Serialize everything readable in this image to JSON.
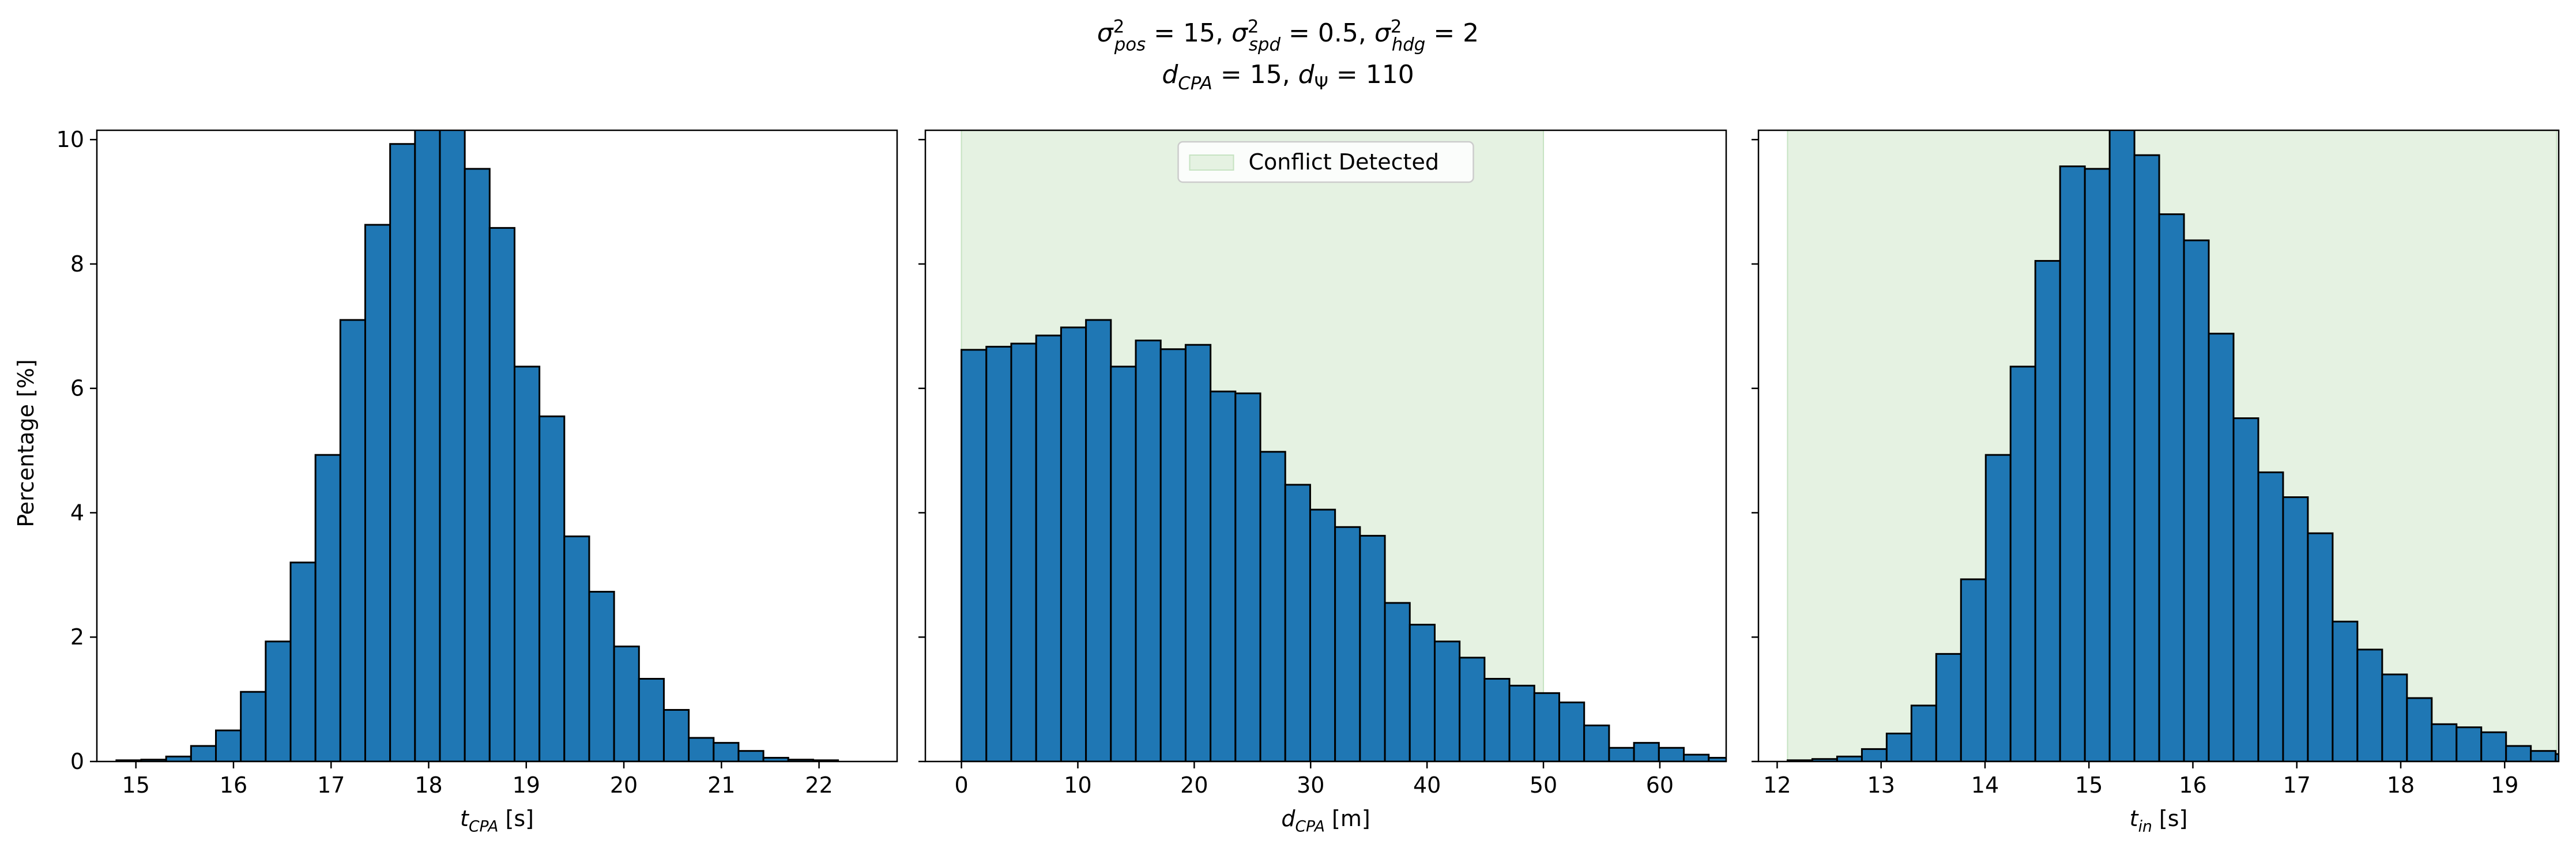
{
  "title": {
    "line1": "σ²pos = 15, σ²spd = 0.5, σ²hdg = 2",
    "line2": "dCPA = 15, dΨ = 110"
  },
  "chart_data": [
    {
      "type": "bar",
      "xlabel": "t_CPA [s]",
      "ylabel": "Percentage [%]",
      "xlim": [
        14.6,
        22.8
      ],
      "ylim": [
        0,
        10.15
      ],
      "xticks": [
        15,
        16,
        17,
        18,
        19,
        20,
        21,
        22
      ],
      "yticks": [
        0,
        2,
        4,
        6,
        8,
        10
      ],
      "bin_start": 14.8,
      "bin_width": 0.255,
      "values": [
        0.02,
        0.03,
        0.08,
        0.25,
        0.5,
        1.12,
        1.93,
        3.2,
        4.93,
        7.1,
        8.63,
        9.93,
        10.5,
        10.5,
        9.53,
        8.58,
        6.35,
        5.55,
        3.62,
        2.73,
        1.85,
        1.33,
        0.83,
        0.38,
        0.3,
        0.17,
        0.06,
        0.03,
        0.02
      ]
    },
    {
      "type": "bar",
      "xlabel": "d_CPA [m]",
      "ylabel": "",
      "xlim": [
        -3.1,
        65.7
      ],
      "ylim": [
        0,
        10.15
      ],
      "xticks": [
        0,
        10,
        20,
        30,
        40,
        50,
        60
      ],
      "yticks": [
        0,
        2,
        4,
        6,
        8,
        10
      ],
      "bin_start": 0,
      "bin_width": 2.14,
      "values": [
        6.62,
        6.67,
        6.72,
        6.85,
        6.98,
        7.1,
        6.35,
        6.77,
        6.63,
        6.7,
        5.95,
        5.92,
        4.98,
        4.45,
        4.05,
        3.77,
        3.63,
        2.55,
        2.2,
        1.93,
        1.67,
        1.33,
        1.22,
        1.1,
        0.95,
        0.58,
        0.22,
        0.3,
        0.22,
        0.11,
        0.06,
        0.03,
        0.03
      ],
      "shaded_region": {
        "x": [
          0,
          50
        ],
        "color": "#e5f2e2"
      },
      "legend": {
        "label": "Conflict Detected",
        "position": "upper center"
      }
    },
    {
      "type": "bar",
      "xlabel": "t_in [s]",
      "ylabel": "",
      "xlim": [
        11.82,
        19.52
      ],
      "ylim": [
        0,
        10.15
      ],
      "xticks": [
        12,
        13,
        14,
        15,
        16,
        17,
        18,
        19
      ],
      "yticks": [
        0,
        2,
        4,
        6,
        8,
        10
      ],
      "bin_start": 12.1,
      "bin_width": 0.2384,
      "values": [
        0.02,
        0.04,
        0.08,
        0.2,
        0.45,
        0.9,
        1.73,
        2.93,
        4.93,
        6.35,
        8.05,
        9.57,
        9.53,
        10.3,
        9.75,
        8.8,
        8.38,
        6.88,
        5.52,
        4.65,
        4.25,
        3.67,
        2.25,
        1.8,
        1.4,
        1.02,
        0.6,
        0.55,
        0.47,
        0.25,
        0.17,
        0.12,
        0.05,
        0.02,
        0.05
      ],
      "shaded_region": {
        "x": [
          12.1,
          19.5
        ],
        "color": "#e5f2e2"
      }
    }
  ]
}
